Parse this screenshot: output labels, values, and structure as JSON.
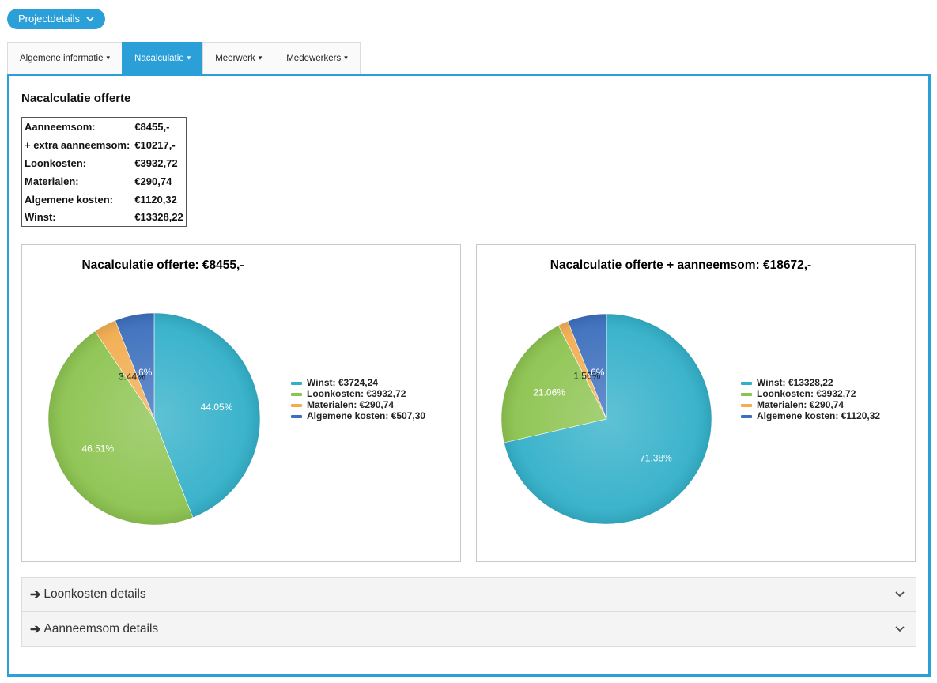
{
  "header": {
    "button_label": "Projectdetails"
  },
  "tabs": [
    {
      "label": "Algemene informatie",
      "active": false
    },
    {
      "label": "Nacalculatie",
      "active": true
    },
    {
      "label": "Meerwerk",
      "active": false
    },
    {
      "label": "Medewerkers",
      "active": false
    }
  ],
  "section": {
    "title": "Nacalculatie offerte"
  },
  "summary": [
    {
      "label": "Aanneemsom:",
      "value": "€8455,-"
    },
    {
      "label": "+ extra aanneemsom:",
      "value": "€10217,-"
    },
    {
      "label": "Loonkosten:",
      "value": "€3932,72"
    },
    {
      "label": "Materialen:",
      "value": "€290,74"
    },
    {
      "label": "Algemene kosten:",
      "value": "€1120,32"
    },
    {
      "label": "Winst:",
      "value": "€13328,22"
    }
  ],
  "colors": {
    "accent": "#2a9fd8",
    "winst": "#32b0c9",
    "loonkosten": "#8cc34f",
    "materialen": "#f2ad50",
    "algemene": "#3c6fbd"
  },
  "chart_data": [
    {
      "type": "pie",
      "title": "Nacalculatie offerte: €8455,-",
      "slices": [
        {
          "name": "Winst: €3724,24",
          "value": 44.05,
          "label": "44.05%",
          "color": "#32b0c9"
        },
        {
          "name": "Loonkosten: €3932,72",
          "value": 46.51,
          "label": "46.51%",
          "color": "#8cc34f"
        },
        {
          "name": "Materialen: €290,74",
          "value": 3.44,
          "label": "3.44%",
          "color": "#f2ad50"
        },
        {
          "name": "Algemene kosten: €507,30",
          "value": 6.0,
          "label": "6%",
          "color": "#3c6fbd"
        }
      ],
      "legend_position": "right"
    },
    {
      "type": "pie",
      "title": "Nacalculatie offerte + aanneemsom: €18672,-",
      "slices": [
        {
          "name": "Winst: €13328,22",
          "value": 71.38,
          "label": "71.38%",
          "color": "#32b0c9"
        },
        {
          "name": "Loonkosten: €3932,72",
          "value": 21.06,
          "label": "21.06%",
          "color": "#8cc34f"
        },
        {
          "name": "Materialen: €290,74",
          "value": 1.56,
          "label": "1.56%",
          "color": "#f2ad50"
        },
        {
          "name": "Algemene kosten: €1120,32",
          "value": 6.0,
          "label": "6%",
          "color": "#3c6fbd"
        }
      ],
      "legend_position": "right"
    }
  ],
  "accordions": [
    {
      "label": "Loonkosten details"
    },
    {
      "label": "Aanneemsom details"
    }
  ],
  "icons": {
    "tab_chevron": "▾",
    "accordion_chevron": "⌄",
    "arrow": "➔"
  }
}
